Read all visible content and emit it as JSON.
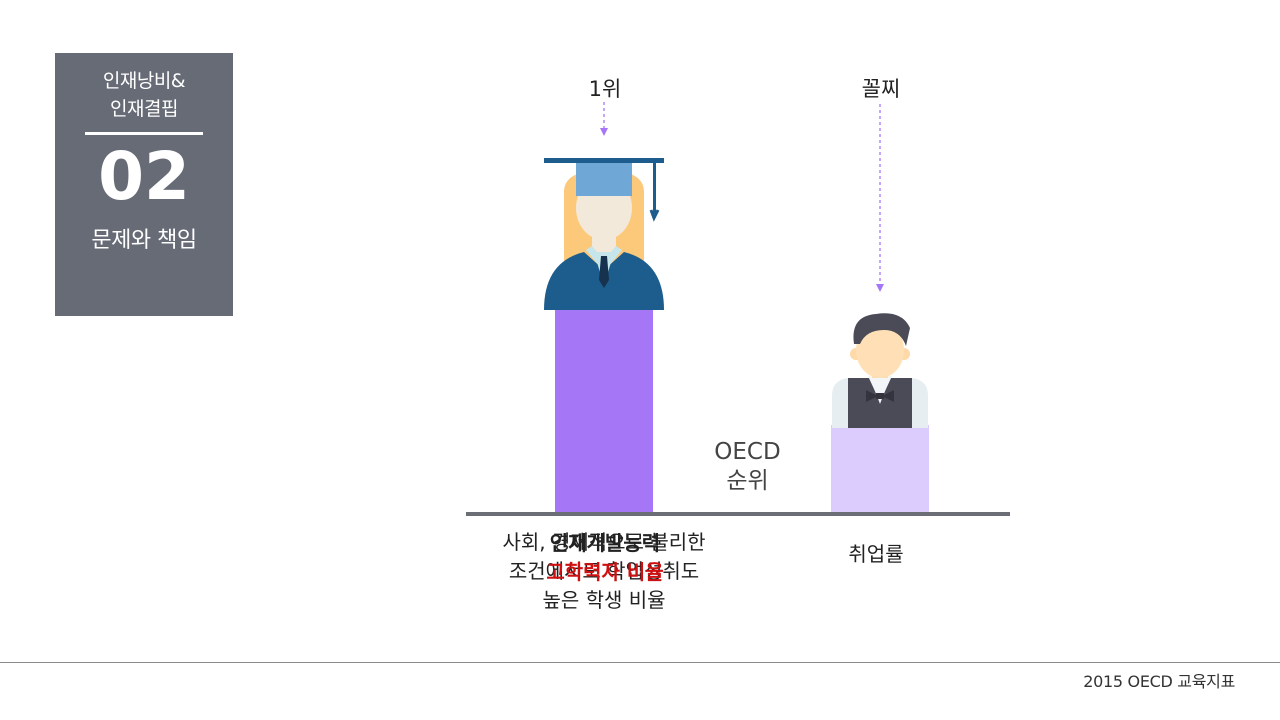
{
  "section": {
    "subtitle_line1": "인재낭비&",
    "subtitle_line2": "인재결핍",
    "number": "02",
    "caption": "문제와 책임"
  },
  "chart_data": {
    "type": "bar",
    "categories": [
      "사회, 경제적으로 불리한 조건에서도 학업성취도 높은 학생 비율",
      "취업률"
    ],
    "values": [
      1,
      0.43
    ],
    "rank_labels": [
      "1위",
      "꼴찌"
    ],
    "axis_note_line1": "OECD",
    "axis_note_line2": "순위",
    "colors": [
      "#a576f6",
      "#dccbfd"
    ]
  },
  "labels": {
    "left_line1": "사회, 경제적으로 불리한",
    "left_line2": "조건에서도 학업성취도",
    "left_line3": "높은 학생 비율",
    "overlap_line1": "인재개발능력",
    "overlap_line2": "고학력자 비율",
    "right": "취업률"
  },
  "icons": {
    "graduate": "graduate-student-icon",
    "worker": "waiter-icon"
  },
  "source": "2015 OECD 교육지표"
}
